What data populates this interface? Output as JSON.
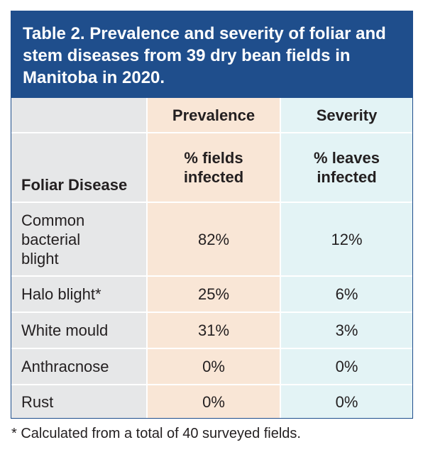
{
  "title": "Table 2. Prevalence and severity of foliar and stem diseases from 39 dry bean fields in Manitoba in 2020.",
  "headers": {
    "prevalence": "Prevalence",
    "severity": "Severity",
    "foliar_disease": "Foliar Disease",
    "fields_infected": "% fields infected",
    "leaves_infected": "% leaves infected"
  },
  "rows": [
    {
      "disease": "Common bacterial blight",
      "prevalence": "82%",
      "severity": "12%"
    },
    {
      "disease": "Halo blight*",
      "prevalence": "25%",
      "severity": "6%"
    },
    {
      "disease": "White mould",
      "prevalence": "31%",
      "severity": "3%"
    },
    {
      "disease": "Anthracnose",
      "prevalence": "0%",
      "severity": "0%"
    },
    {
      "disease": "Rust",
      "prevalence": "0%",
      "severity": "0%"
    }
  ],
  "footnote": "* Calculated from a total of 40 surveyed fields.",
  "colors": {
    "title_bg": "#1f4e8c",
    "disease_col_bg": "#e6e7e8",
    "prevalence_col_bg": "#f9e6d6",
    "severity_col_bg": "#e3f3f5"
  }
}
